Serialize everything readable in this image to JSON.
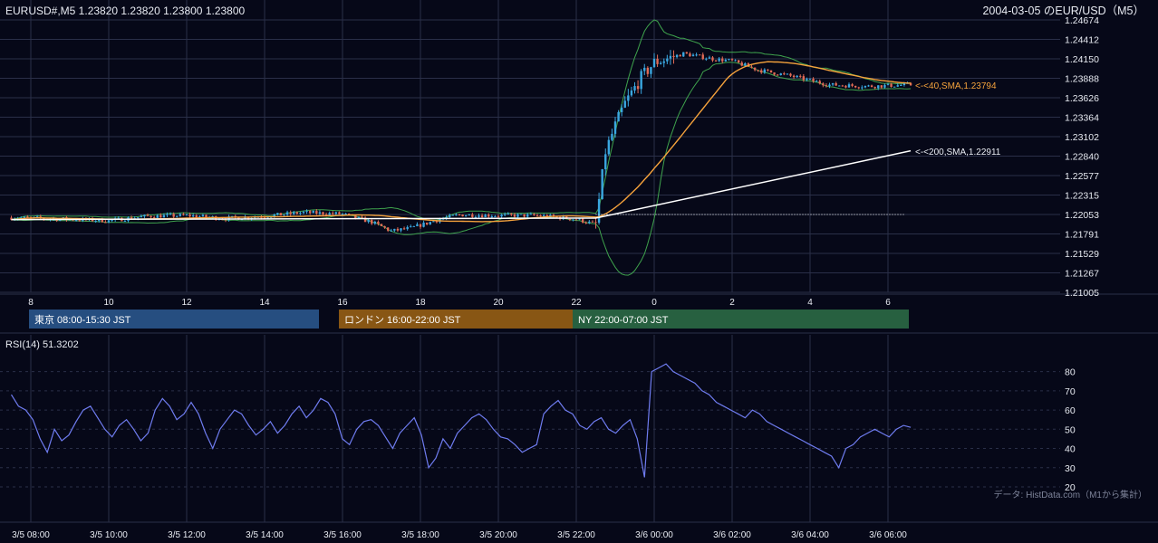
{
  "header": {
    "symbol_ohlc": "EURUSD#,M5 1.23820 1.23820 1.23800 1.23800",
    "title": "2004-03-05 のEUR/USD（M5）"
  },
  "price_axis": {
    "ticks": [
      "1.24674",
      "1.24412",
      "1.24150",
      "1.23888",
      "1.23626",
      "1.23364",
      "1.23102",
      "1.22840",
      "1.22577",
      "1.22315",
      "1.22053",
      "1.21791",
      "1.21529",
      "1.21267",
      "1.21005"
    ]
  },
  "hour_axis": {
    "ticks": [
      "8",
      "10",
      "12",
      "14",
      "16",
      "18",
      "20",
      "22",
      "0",
      "2",
      "4",
      "6"
    ]
  },
  "sessions": [
    {
      "label": "東京 08:00-15:30 JST",
      "color": "#264e80"
    },
    {
      "label": "ロンドン 16:00-22:00 JST",
      "color": "#885614"
    },
    {
      "label": "NY 22:00-07:00 JST",
      "color": "#276040"
    }
  ],
  "annotations": {
    "sma40": "<-<40,SMA,1.23794",
    "sma200": "<-<200,SMA,1.22911"
  },
  "rsi": {
    "title": "RSI(14) 51.3202",
    "ticks": [
      "80",
      "70",
      "60",
      "50",
      "40",
      "30",
      "20"
    ]
  },
  "time_axis": {
    "ticks": [
      "3/5 08:00",
      "3/5 10:00",
      "3/5 12:00",
      "3/5 14:00",
      "3/5 16:00",
      "3/5 18:00",
      "3/5 20:00",
      "3/5 22:00",
      "3/6 00:00",
      "3/6 02:00",
      "3/6 04:00",
      "3/6 06:00"
    ]
  },
  "credit": "データ: HistData.com（M1から集計）",
  "colors": {
    "background": "#060818",
    "grid": "#2a2f48",
    "up_candle": "#3aa7e0",
    "down_candle": "#e06a55",
    "sma40": "#f5a23c",
    "sma200": "#ffffff",
    "bollinger": "#3fa34d",
    "rsi_line": "#6f7cf0",
    "session_tokyo": "#264e80",
    "session_london": "#885614",
    "session_ny": "#276040"
  },
  "chart_data": [
    {
      "type": "candlestick",
      "title": "2004-03-05 のEUR/USD（M5）",
      "ylim": [
        1.21005,
        1.24674
      ],
      "x_range": [
        "3/5 07:30",
        "3/6 06:35"
      ],
      "overlays": [
        "SMA 40",
        "SMA 200",
        "Bollinger Bands"
      ],
      "price_path": [
        [
          "3/5 07:30",
          1.2201
        ],
        [
          "3/5 09:00",
          1.2199
        ],
        [
          "3/5 10:00",
          1.2197
        ],
        [
          "3/5 11:00",
          1.2203
        ],
        [
          "3/5 12:00",
          1.2204
        ],
        [
          "3/5 13:00",
          1.22
        ],
        [
          "3/5 14:00",
          1.2203
        ],
        [
          "3/5 15:00",
          1.2208
        ],
        [
          "3/5 16:00",
          1.2206
        ],
        [
          "3/5 16:45",
          1.2195
        ],
        [
          "3/5 17:15",
          1.2183
        ],
        [
          "3/5 17:45",
          1.2187
        ],
        [
          "3/5 18:30",
          1.2199
        ],
        [
          "3/5 19:00",
          1.2205
        ],
        [
          "3/5 20:00",
          1.2204
        ],
        [
          "3/5 21:00",
          1.2204
        ],
        [
          "3/5 22:00",
          1.2199
        ],
        [
          "3/5 22:30",
          1.2192
        ],
        [
          "3/5 22:45",
          1.229
        ],
        [
          "3/5 23:00",
          1.2325
        ],
        [
          "3/5 23:15",
          1.2355
        ],
        [
          "3/5 23:40",
          1.239
        ],
        [
          "3/6 00:00",
          1.241
        ],
        [
          "3/6 00:45",
          1.2422
        ],
        [
          "3/6 01:30",
          1.2415
        ],
        [
          "3/6 02:00",
          1.2412
        ],
        [
          "3/6 02:40",
          1.24
        ],
        [
          "3/6 03:30",
          1.2392
        ],
        [
          "3/6 04:30",
          1.238
        ],
        [
          "3/6 05:30",
          1.2378
        ],
        [
          "3/6 06:35",
          1.238
        ]
      ],
      "sma40_last": 1.23794,
      "sma200_last": 1.22911,
      "sma200_start": 1.22
    },
    {
      "type": "line",
      "title": "RSI(14) 51.3202",
      "ylim": [
        20,
        85
      ],
      "series": [
        {
          "values": [
            68,
            62,
            60,
            55,
            45,
            38,
            50,
            44,
            47,
            54,
            60,
            62,
            56,
            50,
            46,
            52,
            55,
            50,
            44,
            48,
            60,
            66,
            62,
            55,
            58,
            64,
            58,
            48,
            40,
            50,
            55,
            60,
            58,
            52,
            47,
            50,
            54,
            48,
            52,
            58,
            62,
            56,
            60,
            66,
            64,
            58,
            45,
            42,
            50,
            54,
            55,
            52,
            46,
            40,
            48,
            52,
            56,
            47,
            30,
            35,
            45,
            40,
            48,
            52,
            56,
            58,
            55,
            50,
            46,
            45,
            42,
            38,
            40,
            42,
            58,
            62,
            65,
            60,
            58,
            52,
            50,
            54,
            56,
            50,
            48,
            52,
            55,
            45,
            25,
            80,
            82,
            84,
            80,
            78,
            76,
            74,
            70,
            68,
            64,
            62,
            60,
            58,
            56,
            60,
            58,
            54,
            52,
            50,
            48,
            46,
            44,
            42,
            40,
            38,
            36,
            30,
            40,
            42,
            46,
            48,
            50,
            48,
            46,
            50,
            52,
            51
          ]
        }
      ]
    }
  ]
}
